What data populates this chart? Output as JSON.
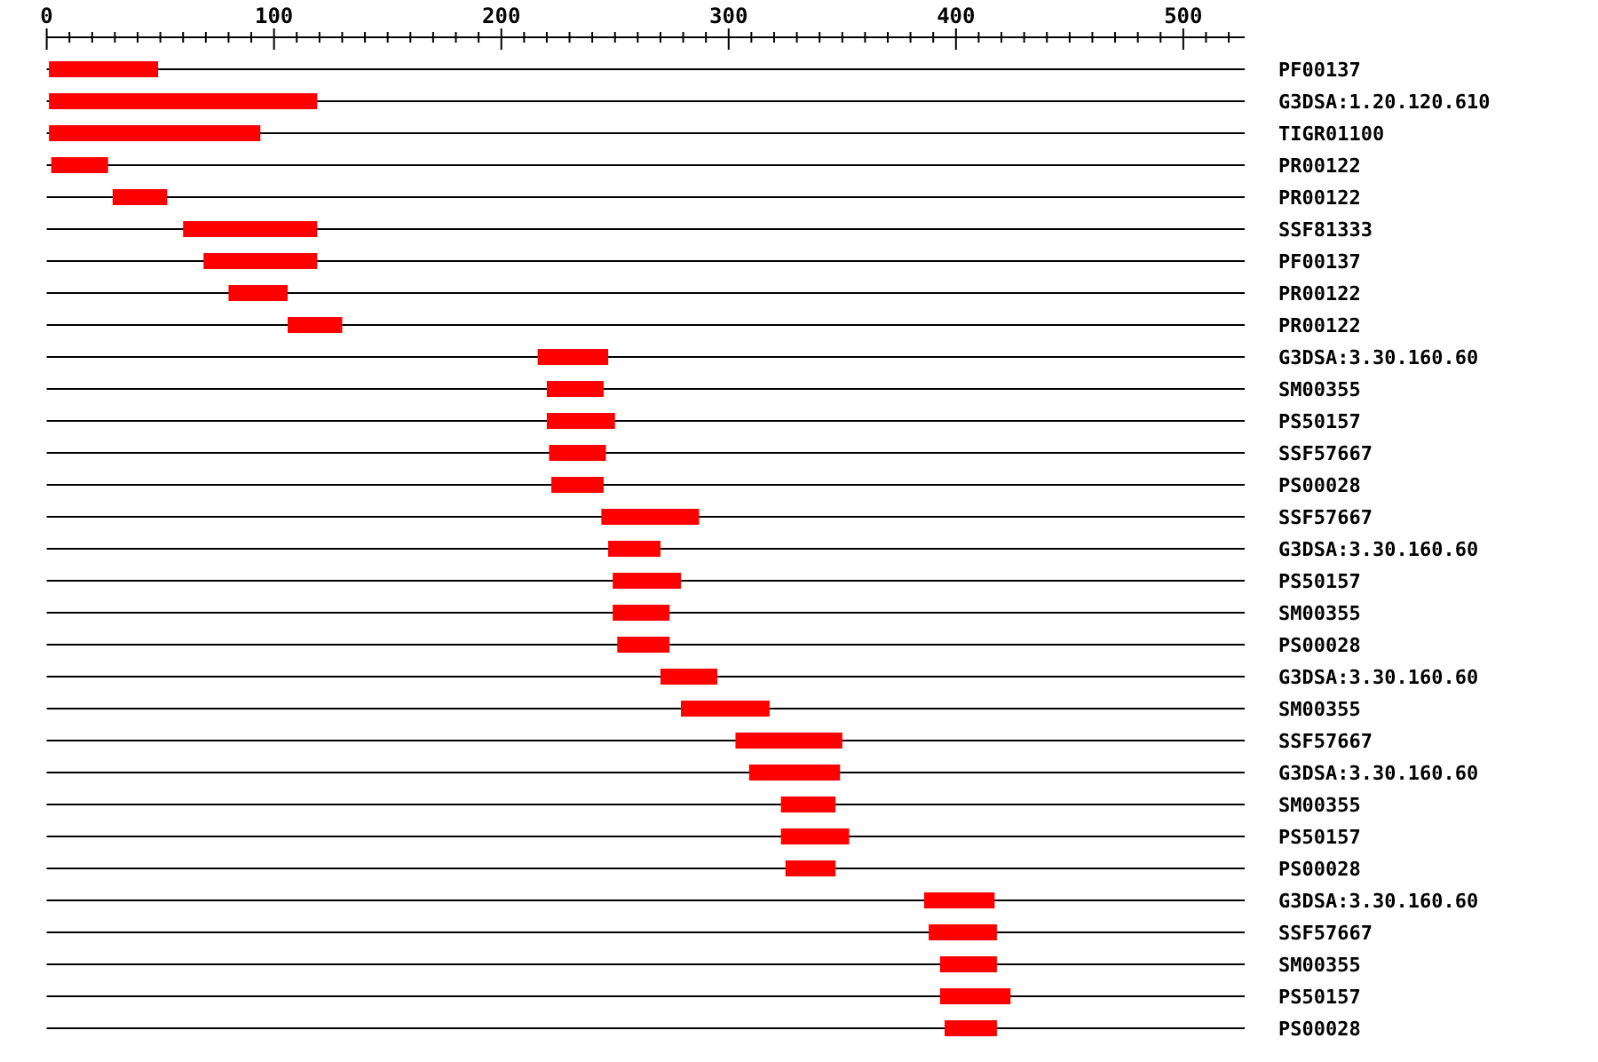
{
  "chart_data": {
    "type": "bar",
    "orientation": "horizontal",
    "categories": [
      "PF00137",
      "G3DSA:1.20.120.610",
      "TIGR01100",
      "PR00122",
      "PR00122",
      "SSF81333",
      "PF00137",
      "PR00122",
      "PR00122",
      "G3DSA:3.30.160.60",
      "SM00355",
      "PS50157",
      "SSF57667",
      "PS00028",
      "SSF57667",
      "G3DSA:3.30.160.60",
      "PS50157",
      "SM00355",
      "PS00028",
      "G3DSA:3.30.160.60",
      "SM00355",
      "SSF57667",
      "G3DSA:3.30.160.60",
      "SM00355",
      "PS50157",
      "PS00028",
      "G3DSA:3.30.160.60",
      "SSF57667",
      "SM00355",
      "PS50157",
      "PS00028"
    ],
    "base": [
      1,
      1,
      1,
      2,
      29,
      60,
      69,
      80,
      106,
      216,
      220,
      220,
      221,
      222,
      244,
      247,
      249,
      249,
      251,
      270,
      279,
      303,
      309,
      323,
      323,
      325,
      386,
      388,
      393,
      393,
      395
    ],
    "values": [
      48,
      118,
      93,
      25,
      24,
      59,
      50,
      26,
      24,
      31,
      25,
      30,
      25,
      23,
      43,
      23,
      30,
      25,
      23,
      25,
      39,
      47,
      40,
      24,
      30,
      22,
      31,
      30,
      25,
      31,
      23
    ],
    "color": "#ff0000",
    "xlim": [
      0,
      527
    ],
    "xticks": [
      0,
      {
        "value": 10,
        "label": null
      },
      {
        "value": 20,
        "label": null
      },
      {
        "value": 30,
        "label": null
      },
      {
        "value": 40,
        "label": null
      },
      {
        "value": 50,
        "label": null
      },
      {
        "value": 60,
        "label": null
      },
      {
        "value": 70,
        "label": null
      },
      {
        "value": 80,
        "label": null
      },
      {
        "value": 90,
        "label": null
      },
      100,
      {
        "value": 110,
        "label": null
      },
      {
        "value": 120,
        "label": null
      },
      {
        "value": 130,
        "label": null
      },
      {
        "value": 140,
        "label": null
      },
      {
        "value": 150,
        "label": null
      },
      {
        "value": 160,
        "label": null
      },
      {
        "value": 170,
        "label": null
      },
      {
        "value": 180,
        "label": null
      },
      {
        "value": 190,
        "label": null
      },
      200,
      {
        "value": 210,
        "label": null
      },
      {
        "value": 220,
        "label": null
      },
      {
        "value": 230,
        "label": null
      },
      {
        "value": 240,
        "label": null
      },
      {
        "value": 250,
        "label": null
      },
      {
        "value": 260,
        "label": null
      },
      {
        "value": 270,
        "label": null
      },
      {
        "value": 280,
        "label": null
      },
      {
        "value": 290,
        "label": null
      },
      300,
      {
        "value": 310,
        "label": null
      },
      {
        "value": 320,
        "label": null
      },
      {
        "value": 330,
        "label": null
      },
      {
        "value": 340,
        "label": null
      },
      {
        "value": 350,
        "label": null
      },
      {
        "value": 360,
        "label": null
      },
      {
        "value": 370,
        "label": null
      },
      {
        "value": 380,
        "label": null
      },
      {
        "value": 390,
        "label": null
      },
      400,
      {
        "value": 410,
        "label": null
      },
      {
        "value": 420,
        "label": null
      },
      {
        "value": 430,
        "label": null
      },
      {
        "value": 440,
        "label": null
      },
      {
        "value": 450,
        "label": null
      },
      {
        "value": 460,
        "label": null
      },
      {
        "value": 470,
        "label": null
      },
      {
        "value": 480,
        "label": null
      },
      {
        "value": 490,
        "label": null
      },
      500,
      {
        "value": 510,
        "label": null
      },
      {
        "value": 520,
        "label": null
      }
    ],
    "grid": "y"
  }
}
